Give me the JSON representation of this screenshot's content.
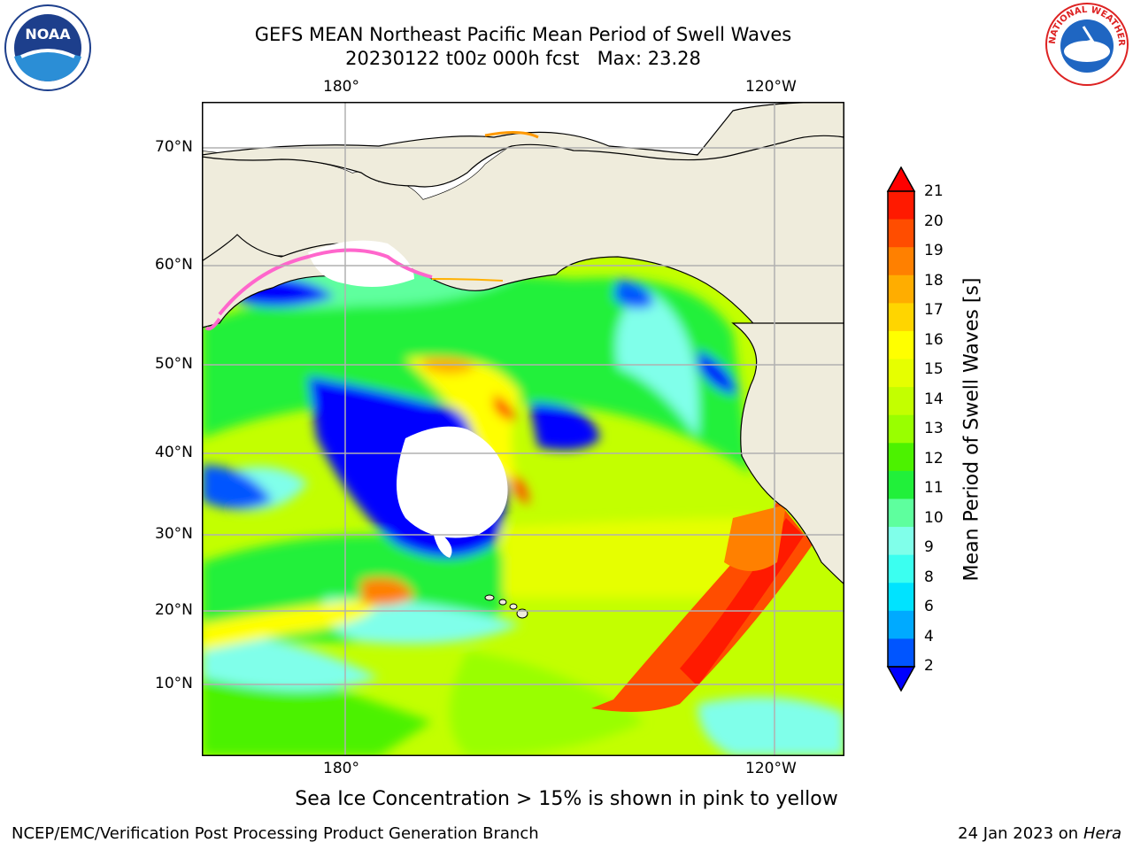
{
  "title_line1": "GEFS MEAN Northeast Pacific Mean Period of Swell Waves",
  "title_line2": "20230122 t00z 000h fcst   Max: 23.28",
  "map": {
    "top_ticks": [
      "180°",
      "120°W"
    ],
    "bottom_ticks": [
      "180°",
      "120°W"
    ],
    "lat_ticks": [
      "70°N",
      "60°N",
      "50°N",
      "40°N",
      "30°N",
      "20°N",
      "10°N"
    ],
    "colors": {
      "land": "#efecdc",
      "grid": "#b0b0b0",
      "coast": "#000000"
    }
  },
  "colorbar": {
    "label": "Mean Period of Swell Waves [s]",
    "ticks": [
      "21",
      "20",
      "19",
      "18",
      "17",
      "16",
      "15",
      "14",
      "13",
      "12",
      "11",
      "10",
      "9",
      "8",
      "6",
      "4",
      "2"
    ],
    "colors": [
      "#ff1a00",
      "#ff4d00",
      "#ff8000",
      "#ffad00",
      "#ffd500",
      "#ffff00",
      "#e6ff00",
      "#c3ff00",
      "#99ff00",
      "#4cf200",
      "#21f03a",
      "#5eff9e",
      "#80ffea",
      "#3bfff0",
      "#00e3ff",
      "#00aaff",
      "#0055ff"
    ],
    "over_color": "#ff0000",
    "under_color": "#0000ff"
  },
  "footer_center": "Sea Ice Concentration > 15% is shown in pink to yellow",
  "footer_left": "NCEP/EMC/Verification Post Processing Product Generation Branch",
  "footer_right_date": "24 Jan 2023 on ",
  "footer_right_host": "Hera",
  "logos": {
    "noaa_text": "NOAA",
    "nws_text": "NATIONAL WEATHER SERVICE"
  }
}
